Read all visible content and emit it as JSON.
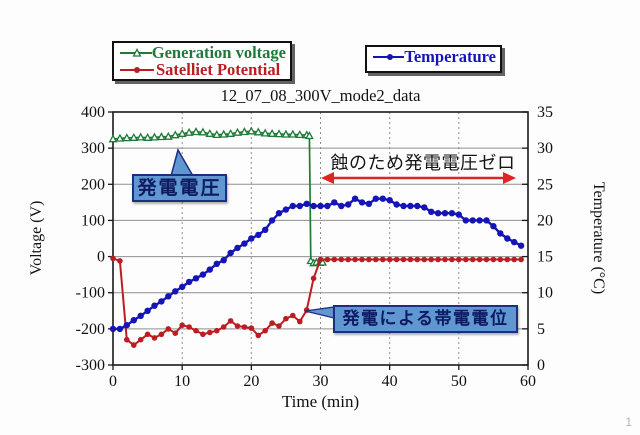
{
  "page": {
    "number": "1"
  },
  "legends": {
    "voltage": {
      "items": [
        {
          "label": "Generation voltage",
          "color": "#1f7a3a",
          "marker": "triangle-hollow"
        },
        {
          "label": "Satelliet Potential",
          "color": "#bb1d22",
          "marker": "circle"
        }
      ]
    },
    "temperature": {
      "items": [
        {
          "label": "Temperature",
          "color": "#1414b8",
          "marker": "circle"
        }
      ]
    }
  },
  "chart_data": {
    "type": "line",
    "title": "12_07_08_300V_mode2_data",
    "xlabel": "Time (min)",
    "ylabel_left": "Voltage (V)",
    "ylabel_right": "Temperature (°C)",
    "xlim": [
      0,
      60
    ],
    "xticks": [
      0,
      10,
      20,
      30,
      40,
      50,
      60
    ],
    "ylim_left": [
      -300,
      400
    ],
    "yticks_left": [
      400,
      300,
      200,
      100,
      0,
      -100,
      -200,
      -300
    ],
    "ylim_right": [
      0,
      35
    ],
    "yticks_right": [
      35,
      30,
      25,
      20,
      15,
      10,
      5,
      0
    ],
    "grid": {
      "horizontal": "solid",
      "vertical": "dashed"
    },
    "series": [
      {
        "name": "Generation voltage",
        "axis": "left",
        "color": "#1f7a3a",
        "marker": "triangle-hollow",
        "lw": 1.7,
        "x": [
          0,
          1,
          2,
          3,
          4,
          5,
          6,
          7,
          8,
          9,
          10,
          11,
          12,
          13,
          14,
          15,
          16,
          17,
          18,
          19,
          20,
          21,
          22,
          23,
          24,
          25,
          26,
          27,
          28,
          28.4,
          28.6,
          29,
          29.4,
          29.9,
          30.3
        ],
        "y": [
          325,
          327,
          328,
          329,
          330,
          329,
          330,
          331,
          332,
          336,
          340,
          343,
          345,
          344,
          340,
          337,
          338,
          340,
          343,
          345,
          347,
          344,
          341,
          340,
          339,
          338,
          338,
          337,
          336,
          334,
          -12,
          -18,
          -16,
          -17,
          -16
        ]
      },
      {
        "name": "Satelliet Potential",
        "axis": "left",
        "color": "#bb1d22",
        "marker": "circle",
        "lw": 2,
        "r": 2.8,
        "x0": 0,
        "dx": 1,
        "y": [
          -5,
          -12,
          -230,
          -245,
          -230,
          -215,
          -225,
          -215,
          -200,
          -212,
          -190,
          -195,
          -205,
          -215,
          -210,
          -205,
          -195,
          -178,
          -192,
          -195,
          -198,
          -218,
          -205,
          -184,
          -192,
          -172,
          -163,
          -180,
          -148,
          -60,
          -8,
          -8,
          -8,
          -8,
          -8,
          -8,
          -8,
          -8,
          -8,
          -8,
          -8,
          -8,
          -8,
          -8,
          -8,
          -8,
          -8,
          -8,
          -8,
          -8,
          -8,
          -8,
          -8,
          -8,
          -8,
          -8,
          -8,
          -8,
          -8,
          -8
        ]
      },
      {
        "name": "Temperature",
        "axis": "right",
        "color": "#1414b8",
        "marker": "circle",
        "lw": 2.4,
        "r": 3.2,
        "x0": 0,
        "dx": 1,
        "y": [
          5,
          5,
          5.5,
          6.2,
          6.8,
          7.5,
          8.2,
          8.8,
          9.5,
          10.2,
          10.8,
          11.5,
          12,
          12.5,
          13.2,
          14,
          14.5,
          15.5,
          16.2,
          16.8,
          17.5,
          18,
          18.7,
          20,
          21,
          21.5,
          22,
          22,
          22.3,
          22,
          22,
          22,
          22.5,
          22,
          22.2,
          23,
          22.5,
          22.3,
          23,
          23,
          22.8,
          22.2,
          22,
          22,
          22,
          21.8,
          21.2,
          21,
          21,
          21,
          20.8,
          20,
          20,
          20,
          20,
          19.2,
          18.2,
          17.5,
          17,
          16.5
        ]
      }
    ],
    "annotations": {
      "gen_voltage_callout": "発電電圧",
      "eclipse_note": "蝕のため発電電圧ゼロ",
      "charging_callout": "発電による帯電電位"
    }
  }
}
